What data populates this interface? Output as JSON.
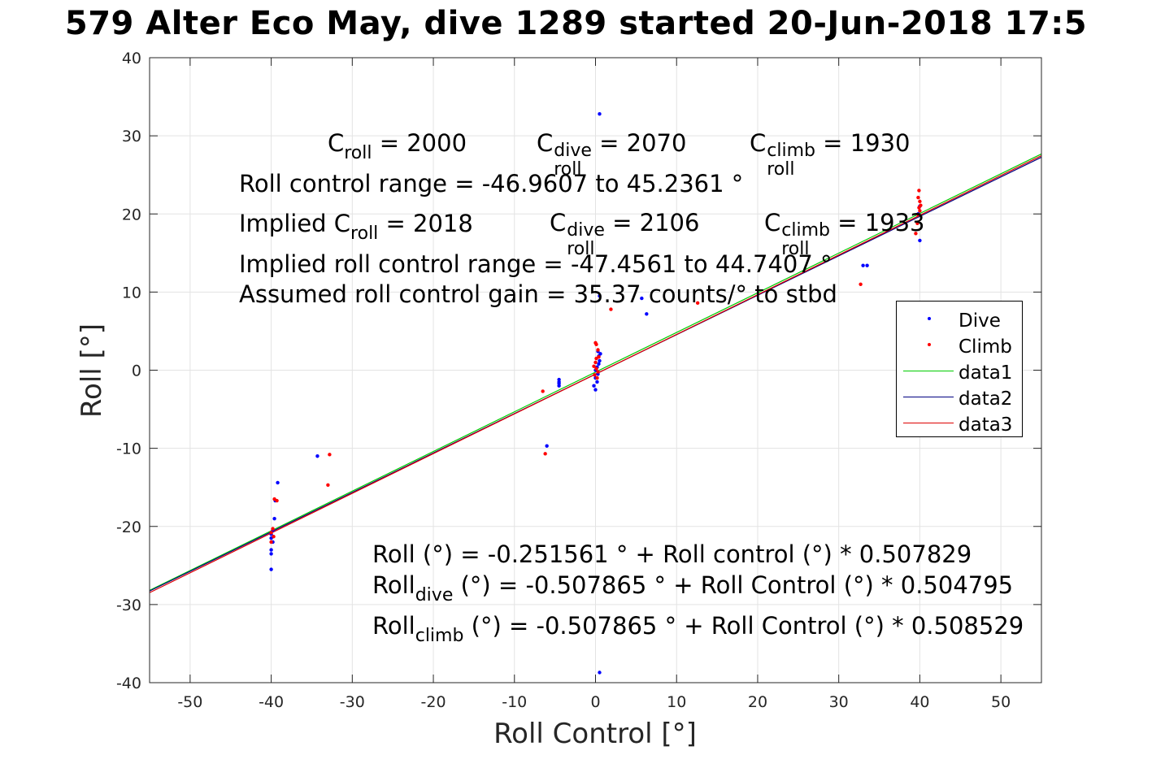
{
  "title": "579 Alter Eco May, dive 1289 started 20-Jun-2018 17:5",
  "chart_data": {
    "type": "scatter",
    "xlabel": "Roll Control [°]",
    "ylabel": "Roll [°]",
    "xlim": [
      -55,
      55
    ],
    "ylim": [
      -40,
      40
    ],
    "xticks": [
      -50,
      -40,
      -30,
      -20,
      -10,
      0,
      10,
      20,
      30,
      40,
      50
    ],
    "yticks": [
      -40,
      -30,
      -20,
      -10,
      0,
      10,
      20,
      30,
      40
    ],
    "grid": true,
    "legend_position": "right",
    "series": [
      {
        "name": "Dive",
        "kind": "points",
        "color": "#0000ff",
        "points": [
          [
            -40,
            -25.5
          ],
          [
            -40,
            -23.5
          ],
          [
            -40,
            -23
          ],
          [
            -39.8,
            -22
          ],
          [
            -40,
            -21.5
          ],
          [
            -40,
            -21
          ],
          [
            -39.8,
            -20.5
          ],
          [
            -39.6,
            -19
          ],
          [
            -39.5,
            -16.7
          ],
          [
            -39.2,
            -14.4
          ],
          [
            -34.3,
            -11
          ],
          [
            -4.5,
            -1.2
          ],
          [
            -4.5,
            -1.5
          ],
          [
            -4.5,
            -1.7
          ],
          [
            -4.5,
            -2
          ],
          [
            -6,
            -9.7
          ],
          [
            0,
            -2.5
          ],
          [
            -0.2,
            -2
          ],
          [
            0.2,
            -1.5
          ],
          [
            0,
            -1
          ],
          [
            0.3,
            -0.5
          ],
          [
            0,
            0
          ],
          [
            0.2,
            0.4
          ],
          [
            0.4,
            0.8
          ],
          [
            0.5,
            1.2
          ],
          [
            0.4,
            1.8
          ],
          [
            0.6,
            2.1
          ],
          [
            0.3,
            2.4
          ],
          [
            0.5,
            32.8
          ],
          [
            0.5,
            -38.7
          ],
          [
            0.5,
            9.5
          ],
          [
            5.7,
            9.2
          ],
          [
            6.3,
            7.2
          ],
          [
            33,
            13.4
          ],
          [
            33.5,
            13.4
          ],
          [
            40,
            16.6
          ],
          [
            39.8,
            20
          ],
          [
            40,
            21
          ]
        ]
      },
      {
        "name": "Climb",
        "kind": "points",
        "color": "#ff0000",
        "points": [
          [
            -40,
            -22
          ],
          [
            -39.7,
            -21.3
          ],
          [
            -40,
            -20.8
          ],
          [
            -39.8,
            -20.3
          ],
          [
            -39.6,
            -16.5
          ],
          [
            -39.3,
            -16.7
          ],
          [
            -32.8,
            -10.8
          ],
          [
            -33,
            -14.7
          ],
          [
            -6.5,
            -2.7
          ],
          [
            -6.2,
            -10.7
          ],
          [
            0,
            3.5
          ],
          [
            0.1,
            3.3
          ],
          [
            0.3,
            2.6
          ],
          [
            0.1,
            1.5
          ],
          [
            0,
            1
          ],
          [
            -0.2,
            0.5
          ],
          [
            0.1,
            0.2
          ],
          [
            0.3,
            -0.2
          ],
          [
            -0.1,
            -0.6
          ],
          [
            0.2,
            -1
          ],
          [
            0.4,
            1.7
          ],
          [
            1.9,
            7.8
          ],
          [
            12.6,
            8.6
          ],
          [
            32.7,
            11
          ],
          [
            39.5,
            17.5
          ],
          [
            39.7,
            18.8
          ],
          [
            39.8,
            19.9
          ],
          [
            40,
            20.4
          ],
          [
            39.9,
            20.8
          ],
          [
            40.1,
            21.1
          ],
          [
            40,
            21.6
          ],
          [
            39.8,
            22.1
          ],
          [
            39.9,
            23
          ]
        ]
      },
      {
        "name": "data1",
        "kind": "line",
        "color": "#00cc00",
        "x": [
          -55,
          55
        ],
        "y": [
          -28.18,
          27.68
        ]
      },
      {
        "name": "data2",
        "kind": "line",
        "color": "#000080",
        "x": [
          -55,
          55
        ],
        "y": [
          -28.27,
          27.26
        ]
      },
      {
        "name": "data3",
        "kind": "line",
        "color": "#dd0000",
        "x": [
          -55,
          55
        ],
        "y": [
          -28.48,
          27.46
        ]
      }
    ]
  },
  "annotations": {
    "c_roll_prefix": "C",
    "c_roll_sub": "roll",
    "c_roll_value": " = 2000",
    "c_dive_prefix": "C",
    "c_dive_sup": "dive",
    "c_dive_sub": "roll",
    "c_dive_value": " = 2070",
    "c_climb_prefix": "C",
    "c_climb_sup": "climb",
    "c_climb_sub": "roll",
    "c_climb_value": " = 1930",
    "roll_control_range": "Roll control range = -46.9607 to 45.2361 °",
    "implied_prefix": "Implied C",
    "implied_sub": "roll",
    "implied_value": " = 2018",
    "implied_dive_prefix": "C",
    "implied_dive_sup": "dive",
    "implied_dive_sub": "roll",
    "implied_dive_value": " = 2106",
    "implied_climb_prefix": "C",
    "implied_climb_sup": "climb",
    "implied_climb_sub": "roll",
    "implied_climb_value": " = 1933",
    "implied_range": "Implied roll control range = -47.4561 to 44.7407 °",
    "gain": "Assumed roll control gain = 35.37 counts/° to stbd",
    "fit_all": "Roll (°) = -0.251561 ° + Roll control (°) * 0.507829",
    "fit_dive_prefix": "Roll",
    "fit_dive_sub": "dive",
    "fit_dive_rest": " (°) = -0.507865 ° + Roll Control (°) * 0.504795",
    "fit_climb_prefix": "Roll",
    "fit_climb_sub": "climb",
    "fit_climb_rest": " (°) = -0.507865 ° + Roll Control (°) * 0.508529"
  }
}
